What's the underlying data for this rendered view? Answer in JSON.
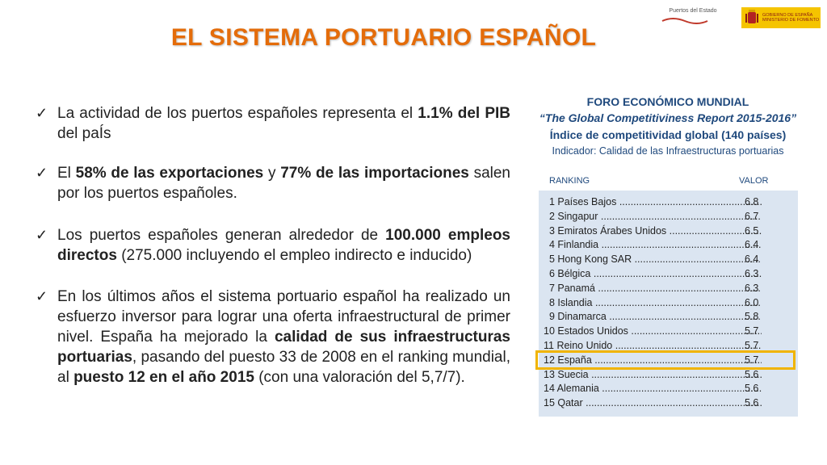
{
  "header": {
    "logo_left_text": "Puertos del Estado",
    "logo_right_line1": "GOBIERNO DE ESPAÑA",
    "logo_right_line2": "MINISTERIO DE FOMENTO"
  },
  "title": "EL SISTEMA PORTUARIO ESPAÑOL",
  "bullets": [
    {
      "parts": [
        [
          "La actividad de los puertos españoles representa el ",
          false
        ],
        [
          "1.1% del PIB",
          true
        ],
        [
          " del paÍs",
          false
        ]
      ]
    },
    {
      "parts": [
        [
          "El ",
          false
        ],
        [
          "58% de las exportaciones",
          true
        ],
        [
          " y ",
          false
        ],
        [
          "77% de las importaciones",
          true
        ],
        [
          " salen por los puertos españoles.",
          false
        ]
      ]
    },
    {
      "parts": [
        [
          "Los puertos españoles generan alrededor de ",
          false
        ],
        [
          "100.000 empleos directos",
          true
        ],
        [
          "  (275.000 incluyendo el empleo indirecto e inducido)",
          false
        ]
      ]
    },
    {
      "parts": [
        [
          "En los últimos años el sistema portuario español ha realizado un esfuerzo inversor para lograr una oferta infraestructural de primer nivel. España ha mejorado la ",
          false
        ],
        [
          "calidad de sus infraestructuras portuarias",
          true
        ],
        [
          ", pasando del puesto 33 de 2008 en el ranking mundial, al ",
          false
        ],
        [
          "puesto 12 en el año 2015",
          true
        ],
        [
          " (con una valoración del 5,7/7).",
          false
        ]
      ]
    }
  ],
  "panel": {
    "h1": "FORO ECONÓMICO MUNDIAL",
    "h2": "“The Global Competitiviness Report 2015-2016”",
    "h3": "Índice de competitividad global (140 países)",
    "h4": "Indicador: Calidad de las Infraestructuras portuarias",
    "col_ranking": "RANKING",
    "col_valor": "VALOR",
    "rows": [
      {
        "rank": " 1",
        "country": "Países Bajos",
        "value": "6.8"
      },
      {
        "rank": " 2",
        "country": "Singapur",
        "value": "6.7"
      },
      {
        "rank": " 3",
        "country": "Emiratos Árabes Unidos",
        "value": "6.5"
      },
      {
        "rank": " 4",
        "country": "Finlandia",
        "value": "6.4"
      },
      {
        "rank": " 5",
        "country": "Hong Kong SAR",
        "value": "6.4"
      },
      {
        "rank": " 6",
        "country": "Bélgica",
        "value": "6.3"
      },
      {
        "rank": " 7",
        "country": "Panamá",
        "value": "6.3"
      },
      {
        "rank": " 8",
        "country": "Islandia",
        "value": "6.0"
      },
      {
        "rank": " 9",
        "country": "Dinamarca",
        "value": "5.8"
      },
      {
        "rank": "10",
        "country": "Estados Unidos",
        "value": "5.7"
      },
      {
        "rank": "11",
        "country": "Reino Unido",
        "value": "5.7"
      },
      {
        "rank": "12",
        "country": "España",
        "value": "5.7"
      },
      {
        "rank": "13",
        "country": "Suecia",
        "value": "5.6"
      },
      {
        "rank": "14",
        "country": "Alemania",
        "value": "5.6"
      },
      {
        "rank": "15",
        "country": "Qatar",
        "value": "5.6"
      }
    ],
    "highlighted_rank": "12"
  }
}
